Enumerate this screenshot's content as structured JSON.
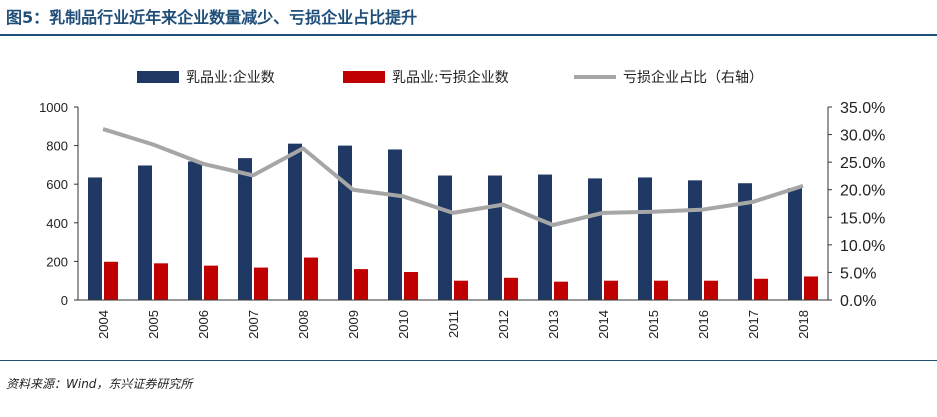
{
  "title": "图5：乳制品行业近年来企业数量减少、亏损企业占比提升",
  "source": "资料来源：Wind，东兴证券研究所",
  "colors": {
    "bar1": "#1f3864",
    "bar2": "#c00000",
    "line": "#a6a6a6",
    "title": "#1f4e79"
  },
  "chart_data": {
    "type": "bar",
    "categories": [
      "2004",
      "2005",
      "2006",
      "2007",
      "2008",
      "2009",
      "2010",
      "2011",
      "2012",
      "2013",
      "2014",
      "2015",
      "2016",
      "2017",
      "2018"
    ],
    "series": [
      {
        "name": "乳品业:企业数",
        "type": "bar",
        "axis": "left",
        "values": [
          635,
          697,
          718,
          735,
          810,
          800,
          780,
          645,
          645,
          650,
          630,
          635,
          620,
          605,
          580
        ]
      },
      {
        "name": "乳品业:亏损企业数",
        "type": "bar",
        "axis": "left",
        "values": [
          198,
          190,
          178,
          168,
          220,
          160,
          145,
          100,
          115,
          95,
          100,
          100,
          100,
          110,
          122
        ]
      },
      {
        "name": "亏损企业占比（右轴）",
        "type": "line",
        "axis": "right",
        "values": [
          31.0,
          28.2,
          24.7,
          22.6,
          27.5,
          20.0,
          18.8,
          15.8,
          17.3,
          13.6,
          15.8,
          16.0,
          16.4,
          17.8,
          20.7
        ]
      }
    ],
    "left_axis": {
      "ylim": [
        0,
        1000
      ],
      "ticks": [
        "0",
        "200",
        "400",
        "600",
        "800",
        "1000"
      ]
    },
    "right_axis": {
      "ylim": [
        0,
        35
      ],
      "ticks": [
        "0.0%",
        "5.0%",
        "10.0%",
        "15.0%",
        "20.0%",
        "25.0%",
        "30.0%",
        "35.0%"
      ]
    },
    "legend_position": "top",
    "grid": false
  }
}
